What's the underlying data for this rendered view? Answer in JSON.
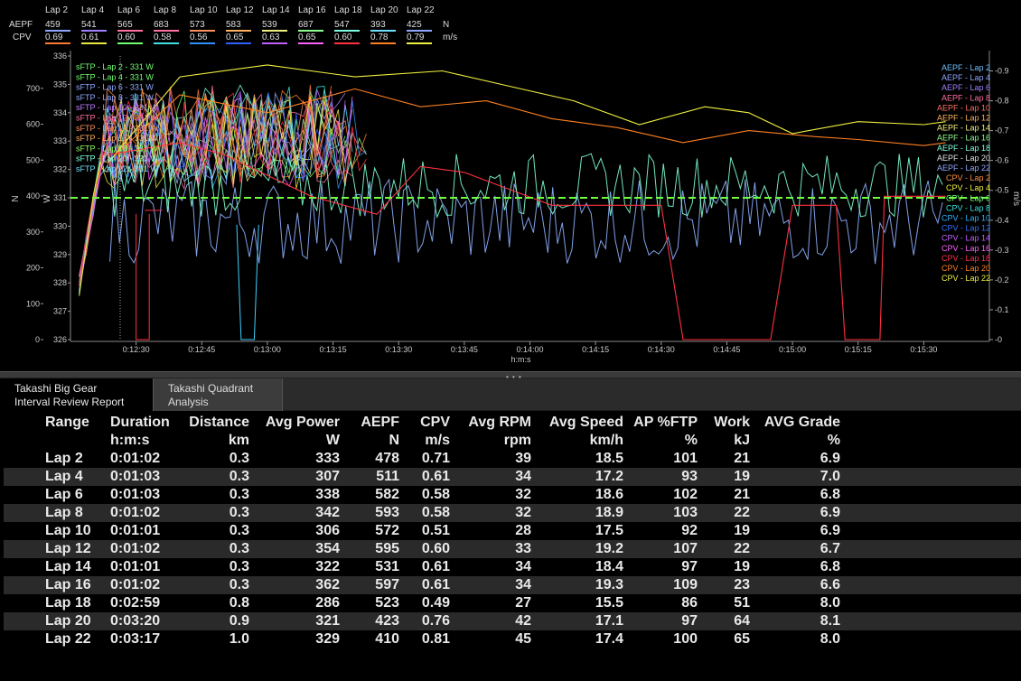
{
  "legend": {
    "row_labels": [
      "AEPF",
      "CPV"
    ],
    "units": [
      "N",
      "m/s"
    ],
    "laps": [
      {
        "name": "Lap 2",
        "aepf": "459",
        "cpv": "0.69",
        "aepf_color": "#8fa8ff",
        "cpv_color": "#ff7a30"
      },
      {
        "name": "Lap 4",
        "aepf": "541",
        "cpv": "0.61",
        "aepf_color": "#a080ff",
        "cpv_color": "#e8e840"
      },
      {
        "name": "Lap 6",
        "aepf": "565",
        "cpv": "0.60",
        "aepf_color": "#ff70a0",
        "cpv_color": "#70ff70"
      },
      {
        "name": "Lap 8",
        "aepf": "683",
        "cpv": "0.58",
        "aepf_color": "#ff70a0",
        "cpv_color": "#40e0e0"
      },
      {
        "name": "Lap 10",
        "aepf": "573",
        "cpv": "0.56",
        "aepf_color": "#ff9060",
        "cpv_color": "#3090ff"
      },
      {
        "name": "Lap 12",
        "aepf": "583",
        "cpv": "0.65",
        "aepf_color": "#ffb060",
        "cpv_color": "#3060ff"
      },
      {
        "name": "Lap 14",
        "aepf": "539",
        "cpv": "0.63",
        "aepf_color": "#f0f080",
        "cpv_color": "#c060ff"
      },
      {
        "name": "Lap 16",
        "aepf": "687",
        "cpv": "0.65",
        "aepf_color": "#90ff90",
        "cpv_color": "#ff60ff"
      },
      {
        "name": "Lap 18",
        "aepf": "547",
        "cpv": "0.60",
        "aepf_color": "#80ffe0",
        "cpv_color": "#ff3040"
      },
      {
        "name": "Lap 20",
        "aepf": "393",
        "cpv": "0.78",
        "aepf_color": "#70e0ff",
        "cpv_color": "#ff8020"
      },
      {
        "name": "Lap 22",
        "aepf": "425",
        "cpv": "0.79",
        "aepf_color": "#8fa8ff",
        "cpv_color": "#f0f040"
      }
    ]
  },
  "chart_data": {
    "type": "line",
    "xlabel": "h:m:s",
    "x_ticks": [
      "0:12:30",
      "0:12:45",
      "0:13:00",
      "0:13:15",
      "0:13:30",
      "0:13:45",
      "0:14:00",
      "0:14:15",
      "0:14:30",
      "0:14:45",
      "0:15:00",
      "0:15:15",
      "0:15:30"
    ],
    "axis_left_N": {
      "label": "N",
      "ticks": [
        "0",
        "100",
        "200",
        "300",
        "400",
        "500",
        "600",
        "700"
      ],
      "ylim": [
        0,
        790
      ]
    },
    "axis_left_W": {
      "label": "W",
      "ticks": [
        "326",
        "327",
        "328",
        "329",
        "330",
        "331",
        "332",
        "333",
        "334",
        "335",
        "336"
      ],
      "ylim": [
        326,
        336
      ]
    },
    "axis_right": {
      "label": "m/s",
      "ticks": [
        "0",
        "0.1",
        "0.2",
        "0.3",
        "0.4",
        "0.5",
        "0.6",
        "0.7",
        "0.8",
        "0.9"
      ],
      "ylim": [
        0,
        0.95
      ]
    },
    "ftp_reference": {
      "value_w": 331,
      "color": "#70ff40"
    },
    "left_annotations": [
      {
        "text": "sFTP - Lap 2 - 331 W",
        "color": "#70ff70"
      },
      {
        "text": "sFTP - Lap 4 - 331 W",
        "color": "#70ff70"
      },
      {
        "text": "sFTP - Lap 6 - 331 W",
        "color": "#8fa8ff"
      },
      {
        "text": "sFTP - Lap 8 - 331 W",
        "color": "#8fa8ff"
      },
      {
        "text": "sFTP - Lap 10 - 331 W",
        "color": "#c080ff"
      },
      {
        "text": "sFTP - Lap 12 - 331 W",
        "color": "#ff70a0"
      },
      {
        "text": "sFTP - Lap 14 - 331 W",
        "color": "#ff9060"
      },
      {
        "text": "sFTP - Lap 16 - 331 W",
        "color": "#ffb060"
      },
      {
        "text": "sFTP - Lap 18 - 331 W",
        "color": "#90ff60"
      },
      {
        "text": "sFTP - Lap 20 - 331 W",
        "color": "#80ffe0"
      },
      {
        "text": "sFTP - Lap 22 - 331 W",
        "color": "#70e0ff"
      }
    ],
    "right_legend": [
      {
        "text": "AEPF - Lap 2",
        "color": "#70c0ff"
      },
      {
        "text": "AEPF - Lap 4",
        "color": "#8fa8ff"
      },
      {
        "text": "AEPF - Lap 6",
        "color": "#a080ff"
      },
      {
        "text": "AEPF - Lap 8",
        "color": "#ff70a0"
      },
      {
        "text": "AEPF - Lap 10",
        "color": "#ff7060"
      },
      {
        "text": "AEPF - Lap 12",
        "color": "#ffb060"
      },
      {
        "text": "AEPF - Lap 14",
        "color": "#f0f080"
      },
      {
        "text": "AEPF - Lap 16",
        "color": "#90ff90"
      },
      {
        "text": "AEPF - Lap 18",
        "color": "#80ffe0"
      },
      {
        "text": "AEPF - Lap 20",
        "color": "#e0e0e0"
      },
      {
        "text": "AEPF - Lap 22",
        "color": "#8fa8ff"
      },
      {
        "text": "CPV - Lap 2",
        "color": "#ff9040"
      },
      {
        "text": "CPV - Lap 4",
        "color": "#f0f040"
      },
      {
        "text": "CPV - Lap 6",
        "color": "#70ff70"
      },
      {
        "text": "CPV - Lap 8",
        "color": "#40e0e0"
      },
      {
        "text": "CPV - Lap 10",
        "color": "#30b0ff"
      },
      {
        "text": "CPV - Lap 12",
        "color": "#3070ff"
      },
      {
        "text": "CPV - Lap 14",
        "color": "#c060ff"
      },
      {
        "text": "CPV - Lap 16",
        "color": "#ff60ff"
      },
      {
        "text": "CPV - Lap 18",
        "color": "#ff3050"
      },
      {
        "text": "CPV - Lap 20",
        "color": "#ff8020"
      },
      {
        "text": "CPV - Lap 22",
        "color": "#f0f040"
      }
    ],
    "series": [
      {
        "name": "AEPF - Lap 22",
        "color": "#8fb0ff",
        "axis": "N",
        "kind": "noisy",
        "t_start_s": 744,
        "t_end_s": 935,
        "base": 330,
        "amp": 120
      },
      {
        "name": "CPV - Lap 20",
        "color": "#ff8020",
        "axis": "m/s",
        "points": [
          [
            744,
            0.6
          ],
          [
            760,
            0.82
          ],
          [
            780,
            0.76
          ],
          [
            800,
            0.84
          ],
          [
            815,
            0.78
          ],
          [
            830,
            0.8
          ],
          [
            845,
            0.74
          ],
          [
            860,
            0.71
          ],
          [
            875,
            0.66
          ],
          [
            890,
            0.7
          ],
          [
            905,
            0.68
          ],
          [
            915,
            0.67
          ],
          [
            930,
            0.65
          ],
          [
            935,
            0.66
          ]
        ]
      },
      {
        "name": "CPV - Lap 22",
        "color": "#f0f040",
        "axis": "m/s",
        "points": [
          [
            744,
            0.6
          ],
          [
            760,
            0.88
          ],
          [
            780,
            0.92
          ],
          [
            800,
            0.88
          ],
          [
            820,
            0.9
          ],
          [
            835,
            0.85
          ],
          [
            850,
            0.8
          ],
          [
            865,
            0.72
          ],
          [
            880,
            0.78
          ],
          [
            890,
            0.76
          ],
          [
            900,
            0.69
          ],
          [
            915,
            0.73
          ],
          [
            930,
            0.72
          ],
          [
            935,
            0.73
          ]
        ]
      },
      {
        "name": "AEPF - Lap 20",
        "color": "#80ffd0",
        "axis": "N",
        "kind": "noisy",
        "t_start_s": 744,
        "t_end_s": 935,
        "base": 430,
        "amp": 90
      },
      {
        "name": "CPV - Lap 18",
        "color": "#ff3040",
        "axis": "m/s",
        "points": [
          [
            744,
            0.62
          ],
          [
            760,
            0.66
          ],
          [
            770,
            0.62
          ],
          [
            790,
            0.48
          ],
          [
            805,
            0.42
          ],
          [
            815,
            0.58
          ],
          [
            825,
            0.56
          ],
          [
            845,
            0.45
          ],
          [
            860,
            0.45
          ],
          [
            870,
            0.45
          ],
          [
            875,
            0.0
          ],
          [
            895,
            0.0
          ],
          [
            900,
            0.45
          ],
          [
            910,
            0.45
          ],
          [
            912,
            0.0
          ],
          [
            920,
            0.0
          ],
          [
            921,
            0.48
          ],
          [
            935,
            0.48
          ]
        ]
      }
    ]
  },
  "splitter": {
    "grip": "• • •"
  },
  "tabs": [
    {
      "label_line1": "Takashi  Big Gear",
      "label_line2": "Interval Review Report",
      "active": true
    },
    {
      "label_line1": "Takashi Quadrant",
      "label_line2": "Analysis",
      "active": false
    }
  ],
  "report": {
    "headers": [
      {
        "line1": "Range",
        "line2": ""
      },
      {
        "line1": "Duration",
        "line2": "h:m:s"
      },
      {
        "line1": "Distance",
        "line2": "km"
      },
      {
        "line1": "Avg Power",
        "line2": "W"
      },
      {
        "line1": "AEPF",
        "line2": "N"
      },
      {
        "line1": "CPV",
        "line2": "m/s"
      },
      {
        "line1": "Avg RPM",
        "line2": "rpm"
      },
      {
        "line1": "Avg Speed",
        "line2": "km/h"
      },
      {
        "line1": "AP %FTP",
        "line2": "%"
      },
      {
        "line1": "Work",
        "line2": "kJ"
      },
      {
        "line1": "AVG Grade",
        "line2": "%"
      }
    ],
    "rows": [
      [
        "Lap 2",
        "0:01:02",
        "0.3",
        "333",
        "478",
        "0.71",
        "39",
        "18.5",
        "101",
        "21",
        "6.9"
      ],
      [
        "Lap 4",
        "0:01:03",
        "0.3",
        "307",
        "511",
        "0.61",
        "34",
        "17.2",
        "93",
        "19",
        "7.0"
      ],
      [
        "Lap 6",
        "0:01:03",
        "0.3",
        "338",
        "582",
        "0.58",
        "32",
        "18.6",
        "102",
        "21",
        "6.8"
      ],
      [
        "Lap 8",
        "0:01:02",
        "0.3",
        "342",
        "593",
        "0.58",
        "32",
        "18.9",
        "103",
        "22",
        "6.9"
      ],
      [
        "Lap 10",
        "0:01:01",
        "0.3",
        "306",
        "572",
        "0.51",
        "28",
        "17.5",
        "92",
        "19",
        "6.9"
      ],
      [
        "Lap 12",
        "0:01:02",
        "0.3",
        "354",
        "595",
        "0.60",
        "33",
        "19.2",
        "107",
        "22",
        "6.7"
      ],
      [
        "Lap 14",
        "0:01:01",
        "0.3",
        "322",
        "531",
        "0.61",
        "34",
        "18.4",
        "97",
        "19",
        "6.8"
      ],
      [
        "Lap 16",
        "0:01:02",
        "0.3",
        "362",
        "597",
        "0.61",
        "34",
        "19.3",
        "109",
        "23",
        "6.6"
      ],
      [
        "Lap 18",
        "0:02:59",
        "0.8",
        "286",
        "523",
        "0.49",
        "27",
        "15.5",
        "86",
        "51",
        "8.0"
      ],
      [
        "Lap 20",
        "0:03:20",
        "0.9",
        "321",
        "423",
        "0.76",
        "42",
        "17.1",
        "97",
        "64",
        "8.1"
      ],
      [
        "Lap 22",
        "0:03:17",
        "1.0",
        "329",
        "410",
        "0.81",
        "45",
        "17.4",
        "100",
        "65",
        "8.0"
      ]
    ]
  }
}
